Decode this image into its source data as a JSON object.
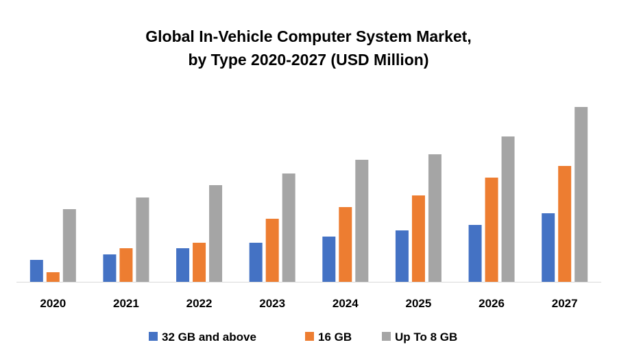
{
  "chart_data": {
    "type": "bar",
    "title_line1": "Global In-Vehicle Computer System Market,",
    "title_line2": "by Type 2020-2027 (USD Million)",
    "xlabel": "",
    "ylabel": "",
    "categories": [
      "2020",
      "2021",
      "2022",
      "2023",
      "2024",
      "2025",
      "2026",
      "2027"
    ],
    "ylim": [
      0,
      270
    ],
    "grid": false,
    "legend_position": "bottom",
    "series": [
      {
        "name": "32 GB and above",
        "color": "#4472C4",
        "values": [
          32,
          40,
          49,
          57,
          66,
          75,
          83,
          100
        ]
      },
      {
        "name": "16 GB",
        "color": "#ED7D31",
        "values": [
          14,
          49,
          57,
          92,
          109,
          126,
          152,
          169
        ]
      },
      {
        "name": "Up To 8 GB",
        "color": "#A5A5A5",
        "values": [
          106,
          123,
          141,
          158,
          178,
          186,
          212,
          255
        ]
      }
    ]
  }
}
